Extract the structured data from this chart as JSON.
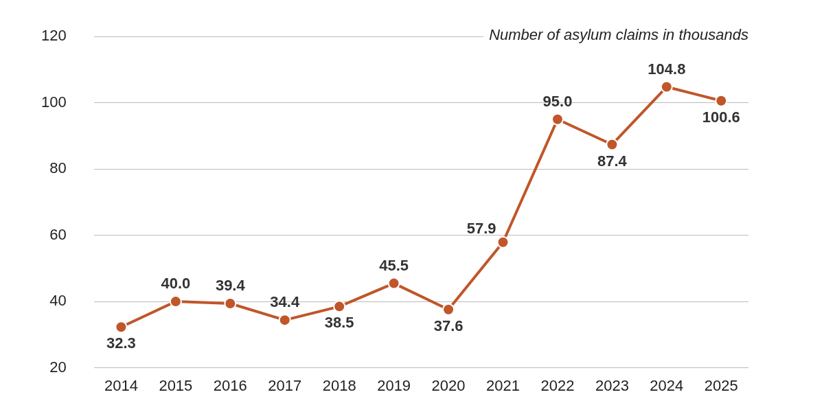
{
  "chart_data": {
    "type": "line",
    "ylabel": "Number of asylum claims in thousands",
    "categories": [
      "2014",
      "2015",
      "2016",
      "2017",
      "2018",
      "2019",
      "2020",
      "2021",
      "2022",
      "2023",
      "2024",
      "2025"
    ],
    "series": [
      {
        "color": "#c0562a",
        "values": [
          32.3,
          40.0,
          39.4,
          34.4,
          38.5,
          45.5,
          37.6,
          57.9,
          95.0,
          87.4,
          104.8,
          100.6
        ],
        "value_labels": [
          "32.3",
          "40.0",
          "39.4",
          "34.4",
          "38.5",
          "45.5",
          "37.6",
          "57.9",
          "95.0",
          "87.4",
          "104.8",
          "100.6"
        ]
      }
    ],
    "ylim": [
      20,
      120
    ],
    "yticks": [
      20,
      40,
      60,
      80,
      100,
      120
    ],
    "grid": "y",
    "legend": false,
    "marker": "circle",
    "line_style": "solid"
  }
}
